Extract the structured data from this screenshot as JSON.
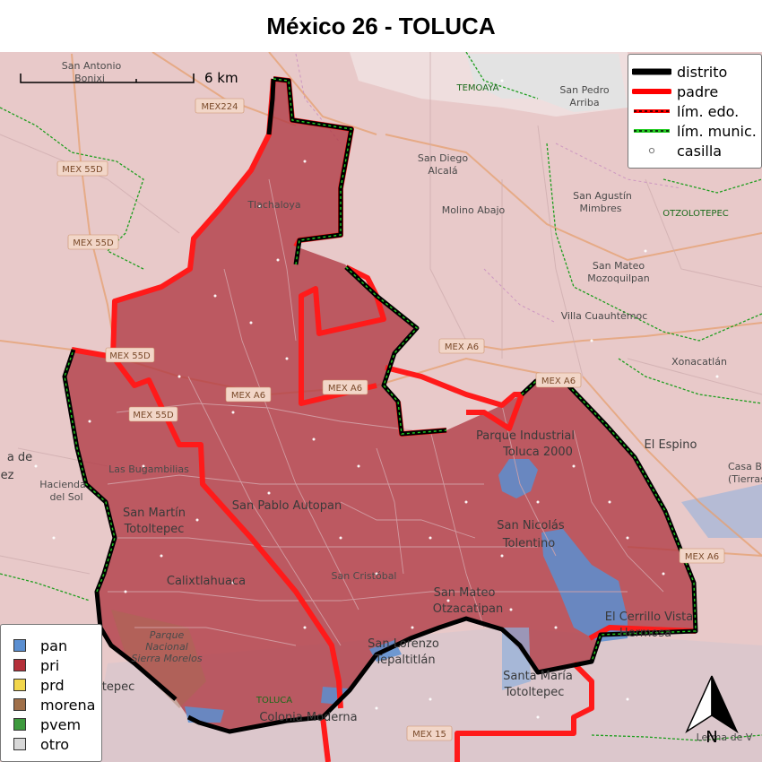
{
  "title": "México 26 - TOLUCA",
  "colors": {
    "pan": "#5b8fd1",
    "pri": "#b5303a",
    "prd": "#f2d64b",
    "morena": "#a0704a",
    "pvem": "#3d9a3d",
    "otro": "#d8d8d8",
    "padre": "#ff0000",
    "distrito": "#000000",
    "munic": "#22cc22",
    "basemap": "#e8c4c4"
  },
  "legend": {
    "items": [
      {
        "label": "distrito",
        "kind": "distrito"
      },
      {
        "label": "padre",
        "kind": "padre"
      },
      {
        "label": "lím. edo.",
        "kind": "edo"
      },
      {
        "label": "lím. munic.",
        "kind": "munic"
      },
      {
        "label": "casilla",
        "kind": "casilla"
      }
    ]
  },
  "party_legend": {
    "items": [
      {
        "label": "pan",
        "color": "#5b8fd1"
      },
      {
        "label": "pri",
        "color": "#b5303a"
      },
      {
        "label": "prd",
        "color": "#f2d64b"
      },
      {
        "label": "morena",
        "color": "#a0704a"
      },
      {
        "label": "pvem",
        "color": "#3d9a3d"
      },
      {
        "label": "otro",
        "color": "#d8d8d8"
      }
    ]
  },
  "scale_label": "6 km",
  "north_label": "N",
  "places": {
    "san_antonio_bonixi": [
      "San Antonio",
      "Bonixi"
    ],
    "temoaya": "TEMOAYA",
    "san_pedro_arriba": [
      "San Pedro",
      "Arriba"
    ],
    "san_diego_alcala": [
      "San Diego",
      "Alcalá"
    ],
    "molino_abajo": "Molino Abajo",
    "san_agustin_mimbres": [
      "San Agustín",
      "Mimbres"
    ],
    "otzolotepec": "OTZOLOTEPEC",
    "tlachaloya": "Tlachaloya",
    "san_mateo_mozoquilpan": [
      "San Mateo",
      "Mozoquilpan"
    ],
    "villa_cuauhtemoc": "Villa Cuauhtémoc",
    "xonacatlan": "Xonacatlán",
    "el_espino": "El Espino",
    "casa_blanca": [
      "Casa Bl",
      "(Tierras N"
    ],
    "parque_industrial": [
      "Parque Industrial",
      "Toluca 2000"
    ],
    "las_bugambilias": "Las Bugambilias",
    "hacienda_del_sol": [
      "Hacienda",
      "del Sol"
    ],
    "villa_de": [
      "a de",
      "ez"
    ],
    "san_pablo_autopan": "San Pablo Autopan",
    "san_martin_toltepec": [
      "San Martín",
      "Totoltepec"
    ],
    "san_nicolas_tolentino": [
      "San Nicolás",
      "Tolentino"
    ],
    "san_cristobal": "San Cristóbal",
    "calixtlahuaca": "Calixtlahuaca",
    "san_mateo_otzacatipan": [
      "San Mateo",
      "Otzacatipan"
    ],
    "el_cerrillo": [
      "El Cerrillo Vista",
      "Hermosa"
    ],
    "parque_nacional": [
      "Parque",
      "Nacional",
      "Sierra Morelos"
    ],
    "san_lorenzo_tepaltitlan": [
      "San Lorenzo",
      "Tepaltitlán"
    ],
    "santa_maria_totoltepec": [
      "Santa María",
      "Totoltepec"
    ],
    "toluca": "TOLUCA",
    "tepec": "tepec",
    "colonia_moderna": "Colonia Moderna",
    "lerma": "Lerma de V"
  },
  "roads": {
    "mex224": "MEX224",
    "mex55d_a": "MEX 55D",
    "mex55d_b": "MEX 55D",
    "mex55d_c": "MEX 55D",
    "mex55d_d": "MEX 55D",
    "mexa6_a": "MEX A6",
    "mexa6_b": "MEX A6",
    "mexa6_c": "MEX A6",
    "mexa6_d": "MEX A6",
    "mexa6_e": "MEX A6",
    "mex15": "MEX 15"
  }
}
